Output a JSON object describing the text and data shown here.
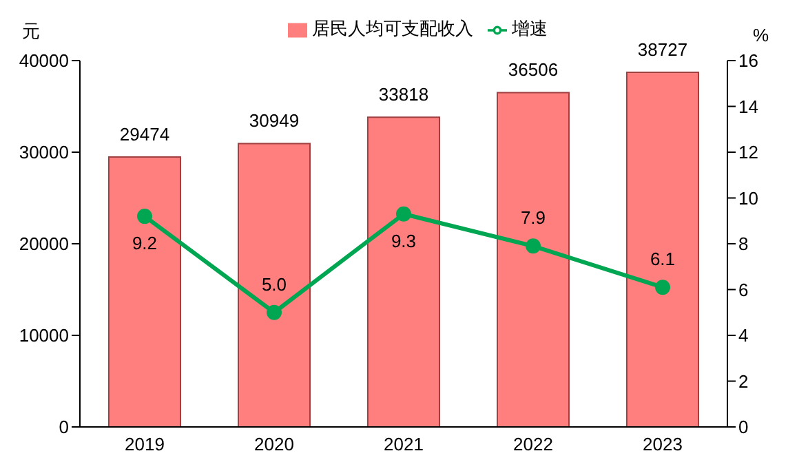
{
  "chart_data": {
    "type": "bar",
    "categories": [
      "2019",
      "2020",
      "2021",
      "2022",
      "2023"
    ],
    "ylabel": "元",
    "y2label": "%",
    "series": [
      {
        "name": "居民人均可支配收入",
        "color": "#ff7f7f",
        "values": [
          29474,
          30949,
          33818,
          36506,
          38727
        ],
        "value_labels": [
          "29474",
          "30949",
          "33818",
          "36506",
          "38727"
        ]
      },
      {
        "name": "增速",
        "type": "line",
        "axis": "y2",
        "color": "#00a651",
        "values": [
          9.2,
          5.0,
          9.3,
          7.9,
          6.1
        ],
        "value_labels": [
          "9.2",
          "5.0",
          "9.3",
          "7.9",
          "6.1"
        ]
      }
    ],
    "ylim": [
      0,
      40000
    ],
    "yticks": [
      0,
      10000,
      20000,
      30000,
      40000
    ],
    "y2lim": [
      0,
      16
    ],
    "y2ticks": [
      0,
      2,
      4,
      6,
      8,
      10,
      12,
      14,
      16
    ],
    "grid": false,
    "legend": "top",
    "marker": "circle",
    "line_style": "solid"
  }
}
